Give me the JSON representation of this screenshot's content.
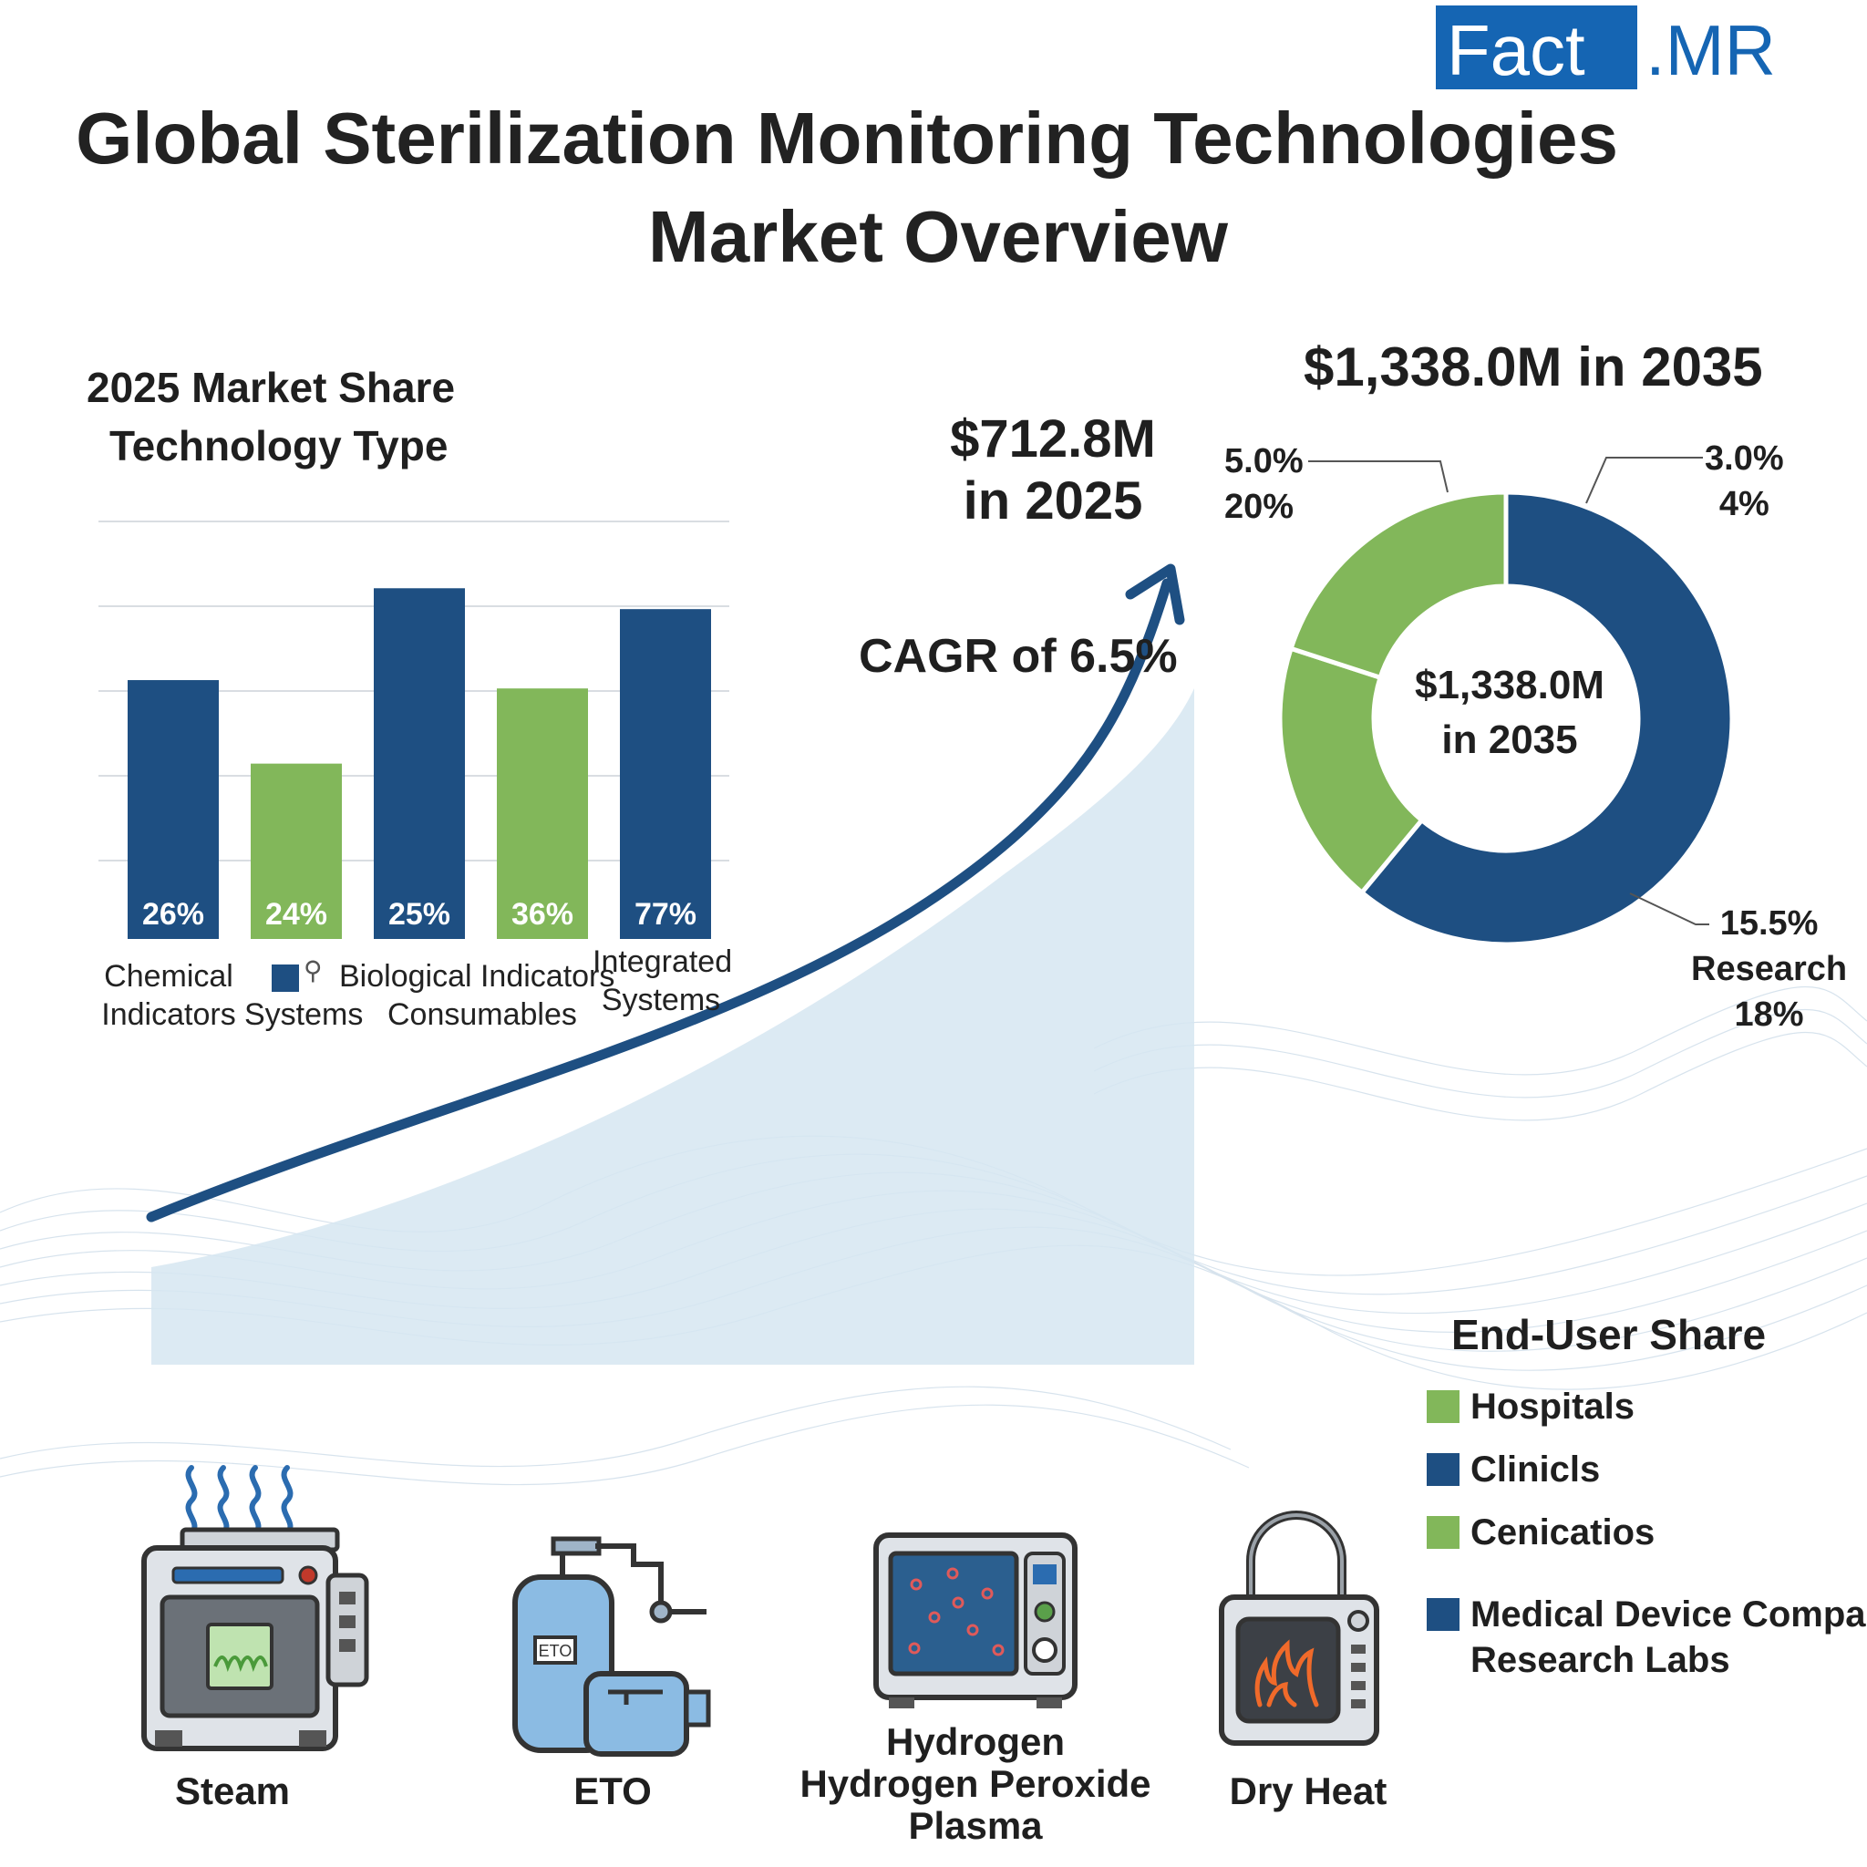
{
  "brand": {
    "fact": "Fact",
    "mr": ".MR"
  },
  "title": {
    "line1": "Global Sterilization Monitoring Technologies",
    "line2": "Market Overview"
  },
  "growth": {
    "value_2025_line1": "$712.8M",
    "value_2025_line2": "in 2025",
    "cagr": "CAGR of 6.5%",
    "value_2035": "$1,338.0M in 2035"
  },
  "colors": {
    "blue": "#1e4f82",
    "green": "#82b75a",
    "brand": "#1565b3",
    "area": "#d6e6f1"
  },
  "chart_data": [
    {
      "type": "bar",
      "title_line1": "2025 Market Share",
      "title_line2": "Technology Type",
      "bars": [
        {
          "label": "26%",
          "value": 26,
          "height_scale": 0.62,
          "color": "blue"
        },
        {
          "label": "24%",
          "value": 24,
          "height_scale": 0.42,
          "color": "green"
        },
        {
          "label": "25%",
          "value": 25,
          "height_scale": 0.84,
          "color": "blue"
        },
        {
          "label": "36%",
          "value": 36,
          "height_scale": 0.6,
          "color": "green"
        },
        {
          "label": "77%",
          "value": 77,
          "height_scale": 0.79,
          "color": "blue"
        }
      ],
      "category_labels": {
        "chemical": [
          "Chemical",
          "Indicators"
        ],
        "systems": "Systems",
        "biological": "Biological Indicators",
        "consumables": "Consumables",
        "integrated": [
          "Integrated",
          "Systems"
        ]
      },
      "grid": true
    },
    {
      "type": "pie",
      "donut": true,
      "center_line1": "$1,338.0M",
      "center_line2": "in 2035",
      "slices": [
        {
          "value": 61,
          "color": "blue"
        },
        {
          "value": 19,
          "color": "green"
        },
        {
          "value": 20,
          "color": "green"
        }
      ],
      "annotations": {
        "top_left": [
          "5.0%",
          "20%"
        ],
        "top_right": [
          "3.0%",
          "4%"
        ],
        "bottom_right": [
          "15.5%",
          "Research",
          "18%"
        ]
      }
    }
  ],
  "end_user_share": {
    "title": "End-User Share",
    "items": [
      {
        "label": "Hospitals",
        "color": "green"
      },
      {
        "label": "Clinicls",
        "color": "blue"
      },
      {
        "label": "Cenicatios",
        "color": "green"
      },
      {
        "label": "Medical Device Companies",
        "label2": "Research Labs",
        "color": "blue"
      }
    ]
  },
  "technologies": [
    {
      "label": "Steam",
      "icon": "steam-sterilizer-icon"
    },
    {
      "label": "ETO",
      "icon": "eto-cylinder-icon",
      "tag": "ETO"
    },
    {
      "label_line1": "Hydrogen",
      "label_line2": "Hydrogen Peroxide",
      "label_line3": "Plasma",
      "icon": "plasma-chamber-icon"
    },
    {
      "label": "Dry Heat",
      "icon": "dry-heat-oven-icon"
    }
  ]
}
